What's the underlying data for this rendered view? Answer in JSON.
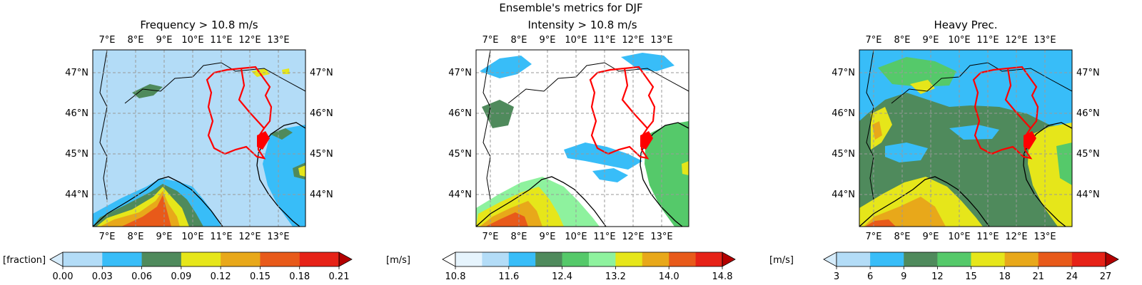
{
  "figure": {
    "suptitle": "Ensemble's metrics for DJF"
  },
  "panels": [
    {
      "title": "Frequency > 10.8 m/s",
      "colorbar": {
        "unit_label": "[fraction]",
        "tick_labels": [
          "0.00",
          "0.03",
          "0.06",
          "0.09",
          "0.12",
          "0.15",
          "0.18",
          "0.21"
        ],
        "colors": [
          "#b3dcf7",
          "#38bdf8",
          "#4f8a5c",
          "#e6e61a",
          "#e8a81a",
          "#e85a1a",
          "#e62217"
        ],
        "under_color": "#d6ecfb",
        "over_color": "#b30000"
      }
    },
    {
      "title": "Intensity > 10.8 m/s",
      "colorbar": {
        "unit_label": "[m/s]",
        "tick_labels": [
          "10.8",
          "11.6",
          "12.4",
          "13.2",
          "14.0",
          "14.8"
        ],
        "colors": [
          "#e6f4fd",
          "#b3dcf7",
          "#38bdf8",
          "#4f8a5c",
          "#55c96a",
          "#8ef29e",
          "#e6e61a",
          "#e8a81a",
          "#e85a1a",
          "#e62217"
        ],
        "under_color": "#ffffff",
        "over_color": "#b30000"
      }
    },
    {
      "title": "Heavy Prec.",
      "colorbar": {
        "unit_label": "[m/s]",
        "tick_labels": [
          "3",
          "6",
          "9",
          "12",
          "15",
          "18",
          "21",
          "24",
          "27"
        ],
        "colors": [
          "#b3dcf7",
          "#38bdf8",
          "#4f8a5c",
          "#55c96a",
          "#e6e61a",
          "#e8a81a",
          "#e85a1a",
          "#e62217"
        ],
        "under_color": "#d6ecfb",
        "over_color": "#b30000"
      }
    }
  ],
  "map_axes": {
    "lon_labels": [
      "7°E",
      "8°E",
      "9°E",
      "10°E",
      "11°E",
      "12°E",
      "13°E"
    ],
    "lat_labels": [
      "47°N",
      "46°N",
      "45°N",
      "44°N"
    ],
    "region_outline_color": "#ff0000",
    "coastline_color": "#000000"
  }
}
